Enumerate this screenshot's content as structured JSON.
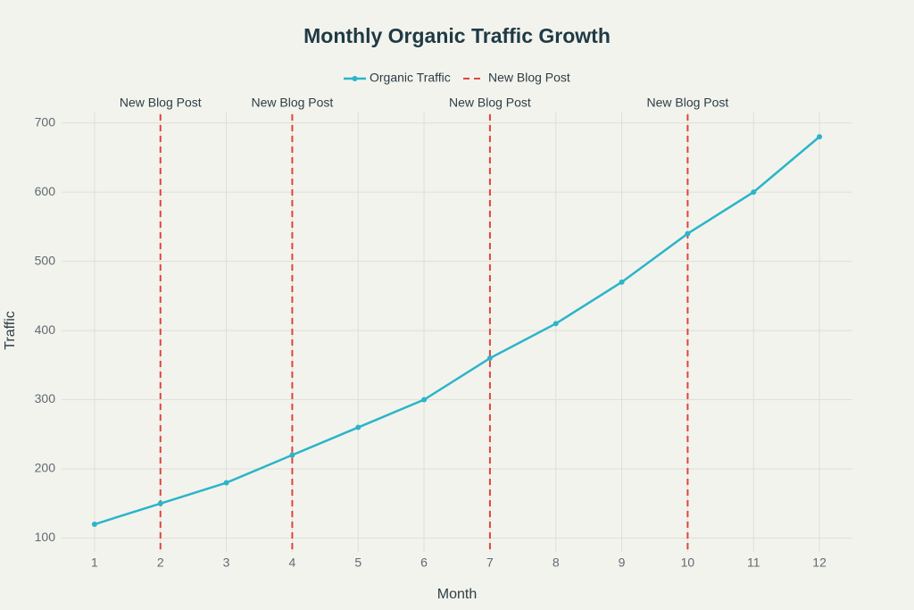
{
  "chart_data": {
    "type": "line",
    "title": "Monthly Organic Traffic Growth",
    "x_label": "Month",
    "y_label": "Traffic",
    "x": [
      1,
      2,
      3,
      4,
      5,
      6,
      7,
      8,
      9,
      10,
      11,
      12
    ],
    "series": [
      {
        "name": "Organic Traffic",
        "color": "#2bb5c8",
        "values": [
          120,
          150,
          180,
          220,
          260,
          300,
          360,
          410,
          470,
          540,
          600,
          680
        ]
      }
    ],
    "vlines": {
      "name": "New Blog Post",
      "color": "#e0453a",
      "x": [
        2,
        4,
        7,
        10
      ],
      "labels": [
        "New Blog Post",
        "New Blog Post",
        "New Blog Post",
        "New Blog Post"
      ]
    },
    "xlim": [
      0.5,
      12.5
    ],
    "xticks": [
      1,
      2,
      3,
      4,
      5,
      6,
      7,
      8,
      9,
      10,
      11,
      12
    ],
    "ylim": [
      80,
      715
    ],
    "yticks": [
      100,
      200,
      300,
      400,
      500,
      600,
      700
    ],
    "grid": true
  }
}
